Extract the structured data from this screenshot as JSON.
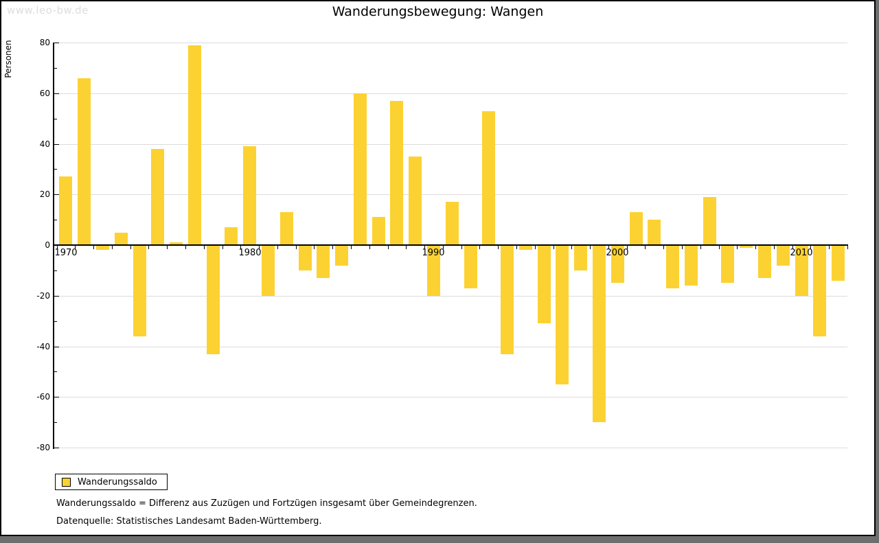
{
  "watermark": "www.leo-bw.de",
  "title": "Wanderungsbewegung: Wangen",
  "y_axis_label": "Personen",
  "legend": {
    "label": "Wanderungssaldo"
  },
  "footnotes": [
    "Wanderungssaldo = Differenz aus Zuzügen und Fortzügen insgesamt über Gemeindegrenzen.",
    "Datenquelle: Statistisches Landesamt Baden-Württemberg."
  ],
  "colors": {
    "bar": "#fcd232",
    "grid": "#dcdcdc",
    "axis": "#000000",
    "watermark": "#dddddd",
    "frame_shadow": "#6e6e6e"
  },
  "chart_data": {
    "type": "bar",
    "title": "Wanderungsbewegung: Wangen",
    "xlabel": "",
    "ylabel": "Personen",
    "ylim": [
      -80,
      80
    ],
    "grid": true,
    "legend_position": "bottom-left",
    "bar_color": "#fcd232",
    "y_major_ticks": [
      80,
      60,
      40,
      20,
      0,
      -20,
      -40,
      -60,
      -80
    ],
    "y_gridlines": [
      80,
      60,
      40,
      20,
      -20,
      -40,
      -60,
      -80
    ],
    "x_tick_labels": [
      "1970",
      "1980",
      "1990",
      "2000",
      "2010"
    ],
    "categories": [
      1970,
      1971,
      1972,
      1973,
      1974,
      1975,
      1976,
      1977,
      1978,
      1979,
      1980,
      1981,
      1982,
      1983,
      1984,
      1985,
      1986,
      1987,
      1988,
      1989,
      1990,
      1991,
      1992,
      1993,
      1994,
      1995,
      1996,
      1997,
      1998,
      1999,
      2000,
      2001,
      2002,
      2003,
      2004,
      2005,
      2006,
      2007,
      2008,
      2009,
      2010,
      2011,
      2012
    ],
    "series": [
      {
        "name": "Wanderungssaldo",
        "values": [
          27,
          66,
          -2,
          5,
          -36,
          38,
          1,
          79,
          -43,
          7,
          39,
          -20,
          13,
          -10,
          -13,
          -8,
          60,
          11,
          57,
          35,
          -20,
          17,
          -17,
          53,
          -43,
          -2,
          -31,
          -55,
          -10,
          -70,
          -15,
          13,
          10,
          -17,
          -16,
          19,
          -15,
          -1,
          -13,
          -8,
          -20,
          -36,
          -14
        ]
      }
    ]
  }
}
